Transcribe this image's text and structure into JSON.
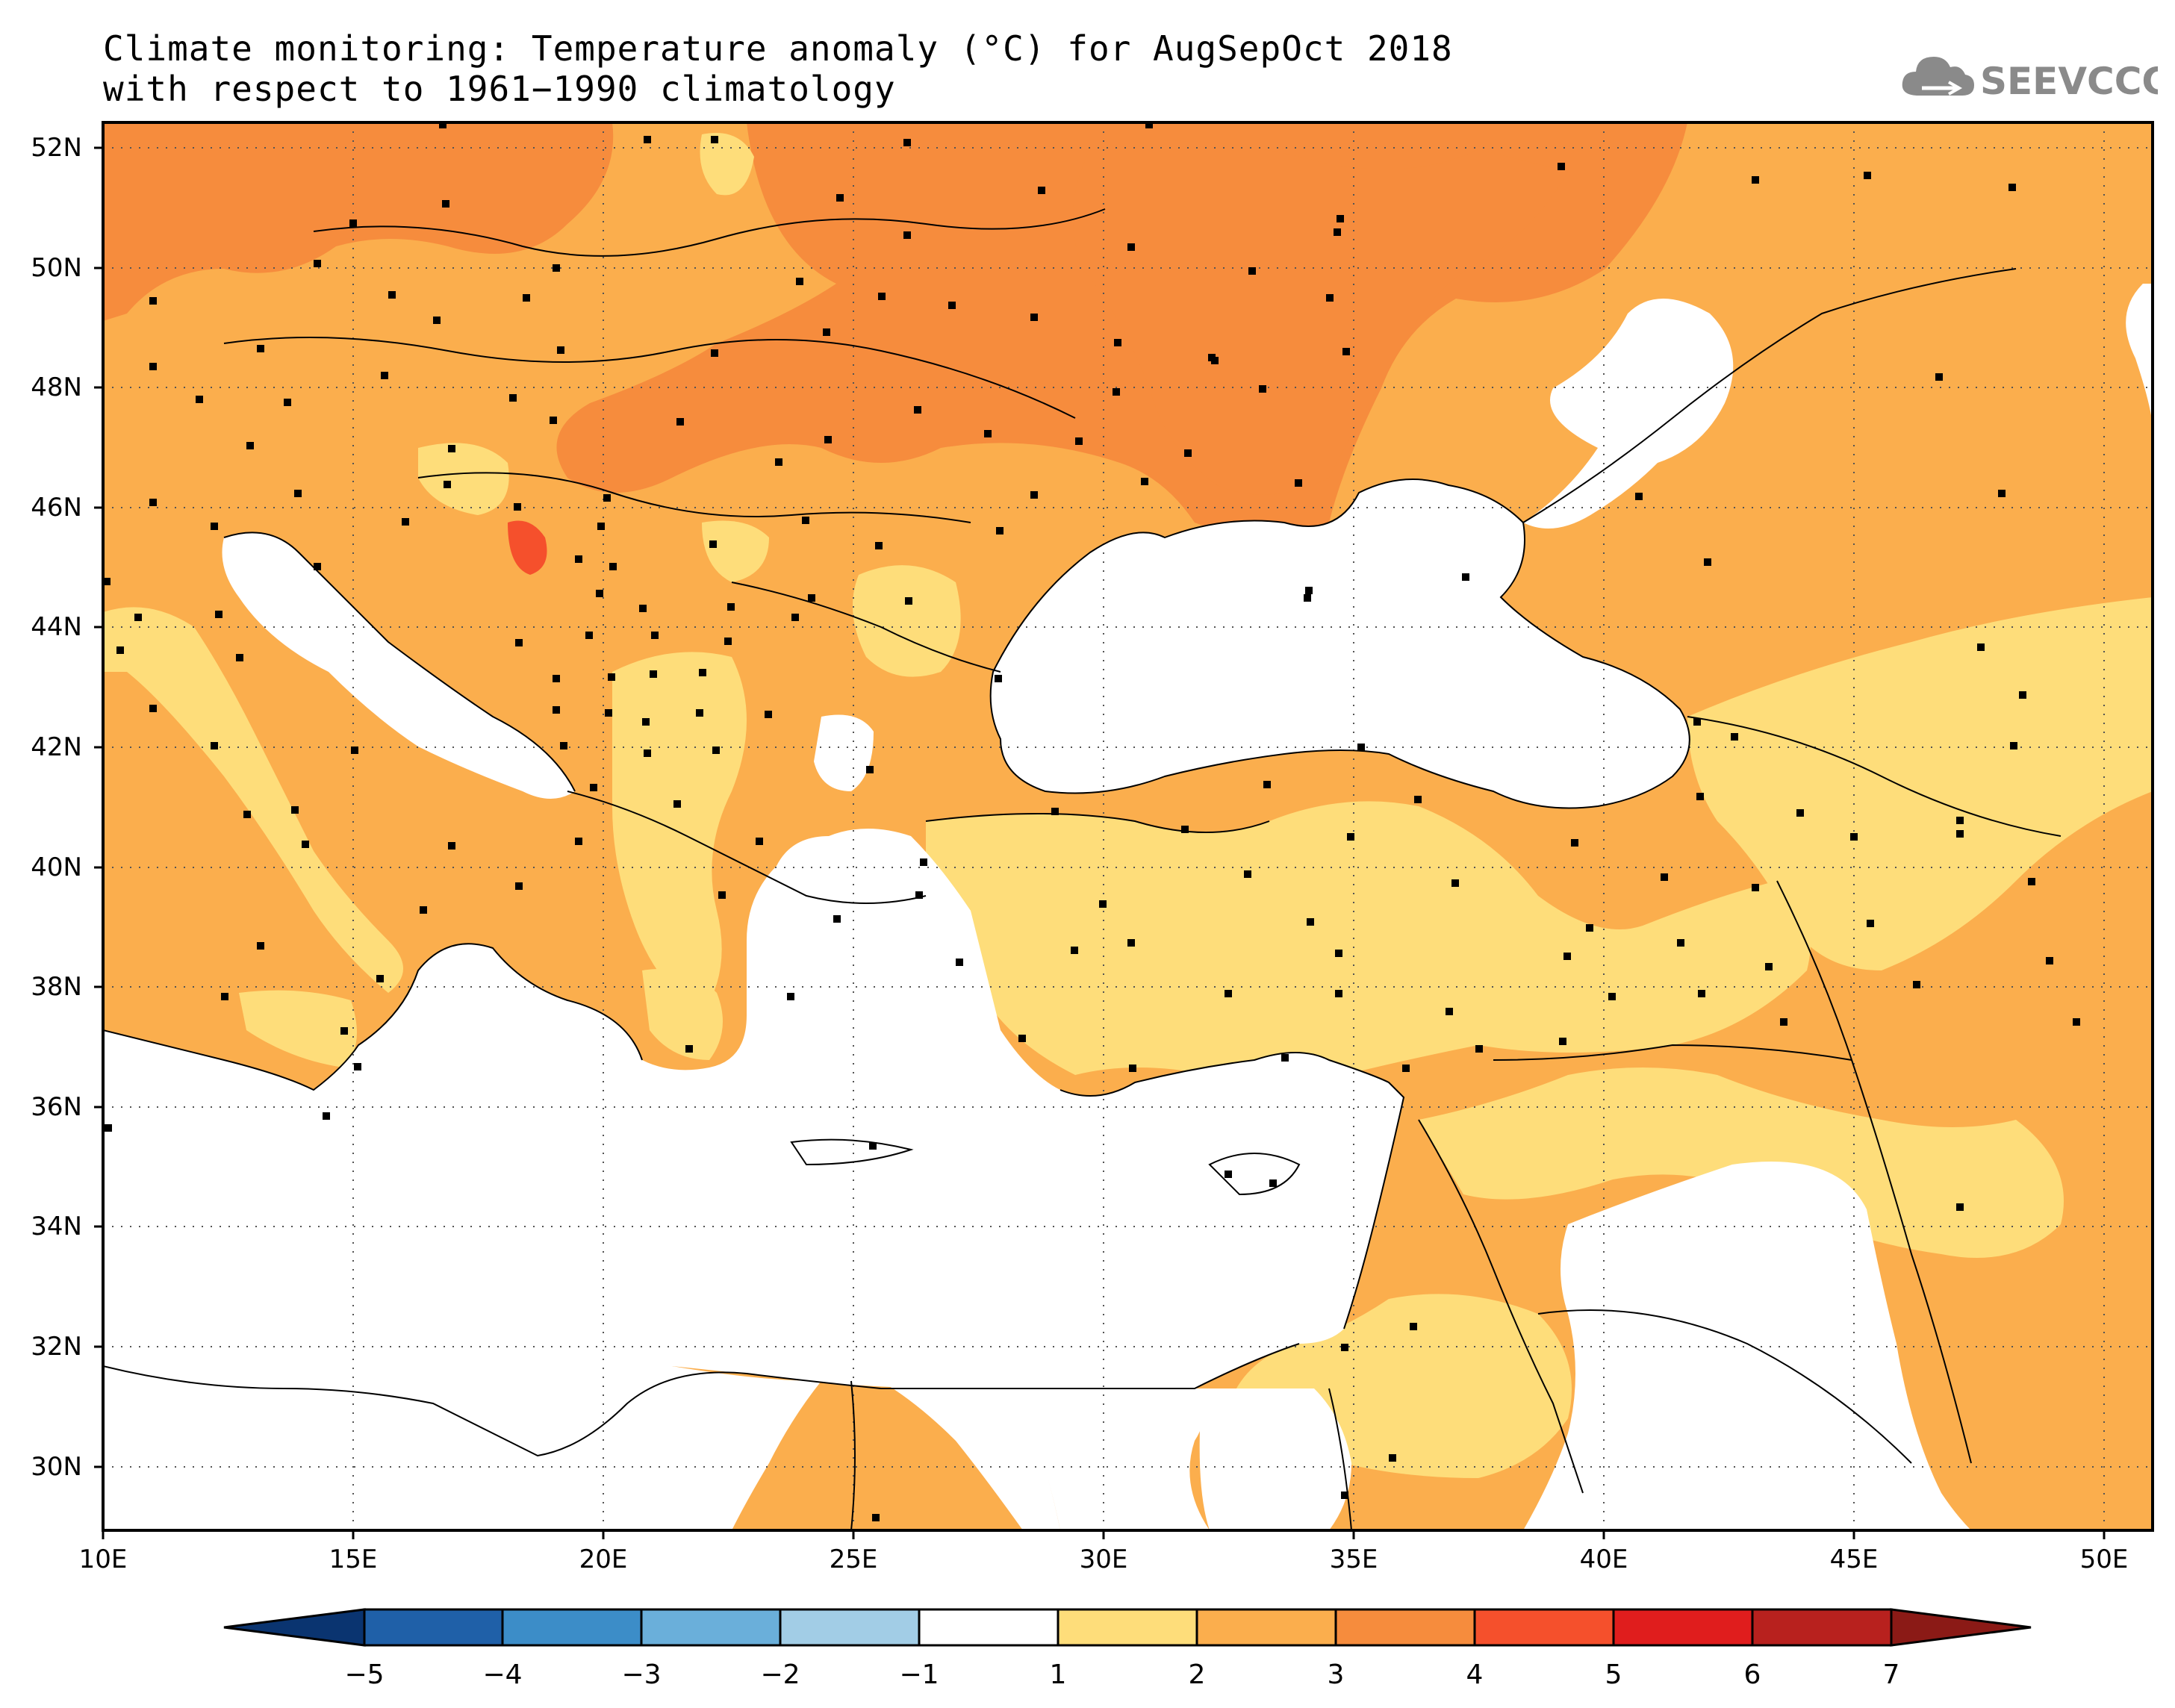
{
  "title": {
    "line1": "Climate monitoring: Temperature anomaly (°C) for AugSepOct 2018",
    "line2": "with respect to 1961−1990 climatology"
  },
  "logo": {
    "text": "SEEVCCC",
    "icon": "cloud-icon"
  },
  "map": {
    "lon_range": [
      10,
      51
    ],
    "lat_range": [
      29,
      52.5
    ],
    "lat_ticks": [
      "52N",
      "50N",
      "48N",
      "46N",
      "44N",
      "42N",
      "40N",
      "38N",
      "36N",
      "34N",
      "32N",
      "30N"
    ],
    "lon_ticks": [
      "10E",
      "15E",
      "20E",
      "25E",
      "30E",
      "35E",
      "40E",
      "45E",
      "50E"
    ],
    "gridlines": "dotted",
    "station_marker": "black square"
  },
  "colorbar": {
    "labels": [
      "−5",
      "−4",
      "−3",
      "−2",
      "−1",
      "1",
      "2",
      "3",
      "4",
      "5",
      "6",
      "7"
    ],
    "colors": [
      "#0a3470",
      "#1f60a8",
      "#3c8dc8",
      "#6aafda",
      "#a2cde6",
      "#ffffff",
      "#fedd7a",
      "#fbae4d",
      "#f68c3d",
      "#f5502c",
      "#e01d1d",
      "#b8211e",
      "#8b1a16"
    ]
  },
  "palette": {
    "anom_1_2": "#fedd7a",
    "anom_2_3": "#fbae4d",
    "anom_3_4": "#f68c3d",
    "anom_4_5": "#f5502c"
  }
}
